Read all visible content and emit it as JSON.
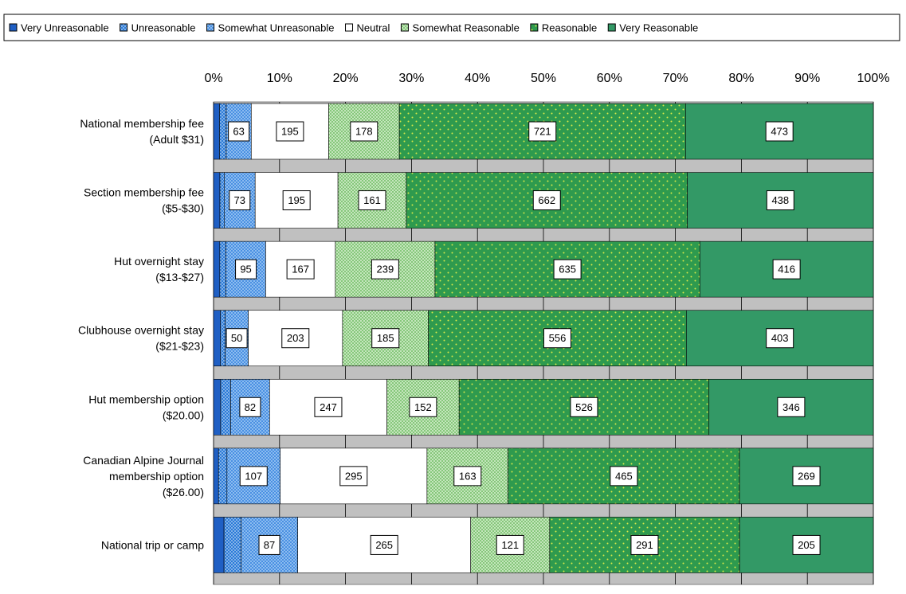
{
  "chart_data": {
    "type": "bar",
    "orientation": "horizontal",
    "stacked": "percent",
    "categories": [
      [
        "National membership fee",
        "(Adult $31)"
      ],
      [
        "Section membership fee",
        "($5-$30)"
      ],
      [
        "Hut overnight stay",
        "($13-$27)"
      ],
      [
        "Clubhouse overnight stay",
        "($21-$23)"
      ],
      [
        "Hut membership option",
        "($20.00)"
      ],
      [
        "Canadian Alpine Journal",
        "membership option",
        "($26.00)"
      ],
      [
        "National trip or camp"
      ]
    ],
    "series": [
      {
        "name": "Very Unreasonable",
        "values": [
          15,
          15,
          15,
          15,
          15,
          10,
          16
        ],
        "color": "#1f5fc4",
        "pattern": "solid"
      },
      {
        "name": "Unreasonable",
        "values": [
          17,
          10,
          15,
          10,
          21,
          17,
          26
        ],
        "color": "#2b7bd8",
        "pattern": "dots-dense"
      },
      {
        "name": "Somewhat Unreasonable",
        "values": [
          63,
          73,
          95,
          50,
          82,
          107,
          87
        ],
        "color": "#8cbcf0",
        "pattern": "checker"
      },
      {
        "name": "Neutral",
        "values": [
          195,
          195,
          167,
          203,
          247,
          295,
          265
        ],
        "color": "#ffffff",
        "pattern": "solid"
      },
      {
        "name": "Somewhat Reasonable",
        "values": [
          178,
          161,
          239,
          185,
          152,
          163,
          121
        ],
        "color": "#a8d8a0",
        "pattern": "checker"
      },
      {
        "name": "Reasonable",
        "values": [
          721,
          662,
          635,
          556,
          526,
          465,
          291
        ],
        "color": "#2e9a4e",
        "pattern": "dots-yellow"
      },
      {
        "name": "Very Reasonable",
        "values": [
          473,
          438,
          416,
          403,
          346,
          269,
          205
        ],
        "color": "#339966",
        "pattern": "solid"
      }
    ],
    "data_labels_series": [
      "Somewhat Unreasonable",
      "Neutral",
      "Somewhat Reasonable",
      "Reasonable",
      "Very Reasonable"
    ],
    "x_ticks": [
      "0%",
      "10%",
      "20%",
      "30%",
      "40%",
      "50%",
      "60%",
      "70%",
      "80%",
      "90%",
      "100%"
    ],
    "xlim": [
      0,
      100
    ],
    "legend_position": "top",
    "grid": "vertical",
    "plot_background": "#c0c0c0"
  }
}
